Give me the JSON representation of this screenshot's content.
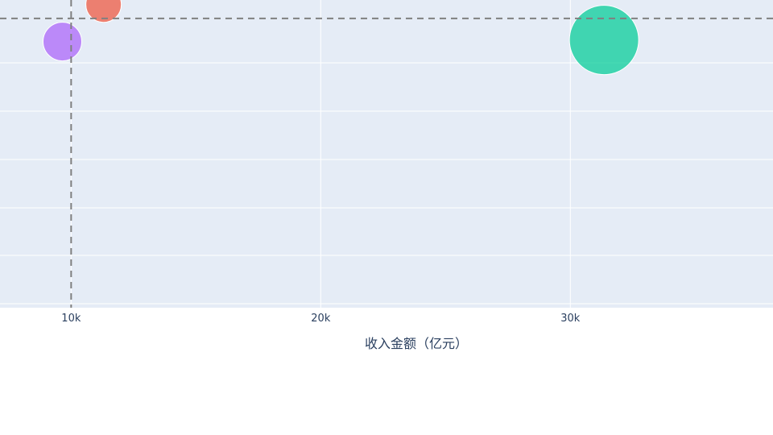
{
  "chart_data": {
    "type": "scatter",
    "subtype": "bubble",
    "xlabel": "收入金额（亿元）",
    "x_ticks": [
      "10k",
      "20k",
      "30k"
    ],
    "x_tick_values": [
      10000,
      20000,
      30000
    ],
    "xlim": [
      7150,
      38120
    ],
    "ylim": [
      0,
      1
    ],
    "grid": true,
    "reference_lines": {
      "x": 10000,
      "y": 0.94
    },
    "points": [
      {
        "x": 11300,
        "y": 0.985,
        "size": 22,
        "color": "#EF553B"
      },
      {
        "x": 9650,
        "y": 0.865,
        "size": 24,
        "color": "#AB63FA"
      },
      {
        "x": 31350,
        "y": 0.87,
        "size": 43,
        "color": "#00CC96"
      }
    ]
  },
  "colors": {
    "plot_background": "#E5ECF6",
    "grid": "#ffffff",
    "reference_line": "#808080",
    "text": "#2a3f5f"
  }
}
